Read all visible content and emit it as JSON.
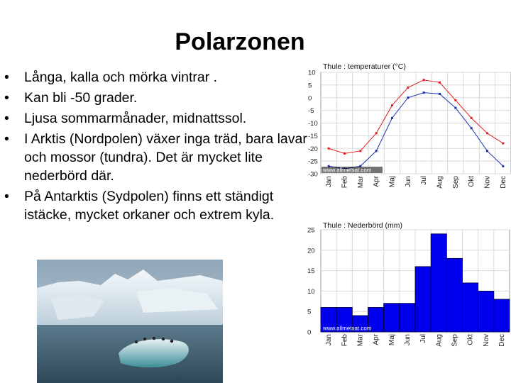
{
  "slide": {
    "title": "Polarzonen",
    "bullets": [
      "Långa, kalla och mörka vintrar .",
      "Kan bli -50 grader.",
      "Ljusa sommarmånader, midnattssol.",
      "I Arktis (Nordpolen) växer inga träd, bara lavar och mossor (tundra). Det är mycket lite nederbörd där.",
      "På Antarktis (Sydpolen) finns ett ständigt istäcke, mycket orkaner och extrem kyla."
    ]
  },
  "colors": {
    "max_line": "#e02020",
    "min_line": "#1a2fb0",
    "bar_fill": "#0000ee",
    "bar_stroke": "#000033",
    "watermark": "#ffffff"
  },
  "chart_data": [
    {
      "type": "line",
      "title": "Thule : temperaturer (°C)",
      "categories": [
        "Jan",
        "Feb",
        "Mar",
        "Apr",
        "Maj",
        "Jun",
        "Jul",
        "Aug",
        "Sep",
        "Okt",
        "Nov",
        "Dec"
      ],
      "series": [
        {
          "values": [
            -20,
            -22,
            -21,
            -14,
            -3,
            4,
            7,
            6,
            -1,
            -8,
            -14,
            -18
          ]
        },
        {
          "values": [
            -27,
            -28,
            -27,
            -21,
            -8,
            0,
            2,
            1.5,
            -4,
            -12,
            -21,
            -27
          ]
        }
      ],
      "ylim": [
        -30,
        10
      ],
      "yticks": [
        "10",
        "5",
        "0",
        "-5",
        "-10",
        "-15",
        "-20",
        "-25",
        "-30"
      ],
      "watermark": "www.allmetsat.com",
      "grid": true
    },
    {
      "type": "bar",
      "title": "Thule : Nederbörd (mm)",
      "categories": [
        "Jan",
        "Feb",
        "Mar",
        "Apr",
        "Maj",
        "Jun",
        "Jul",
        "Aug",
        "Sep",
        "Okt",
        "Nov",
        "Dec"
      ],
      "values": [
        6,
        6,
        4,
        6,
        7,
        7,
        16,
        24,
        18,
        12,
        10,
        8
      ],
      "ylim": [
        0,
        25
      ],
      "yticks": [
        "25",
        "20",
        "15",
        "10",
        "5",
        "0"
      ],
      "watermark": "www.allmetsat.com",
      "grid": true
    }
  ]
}
